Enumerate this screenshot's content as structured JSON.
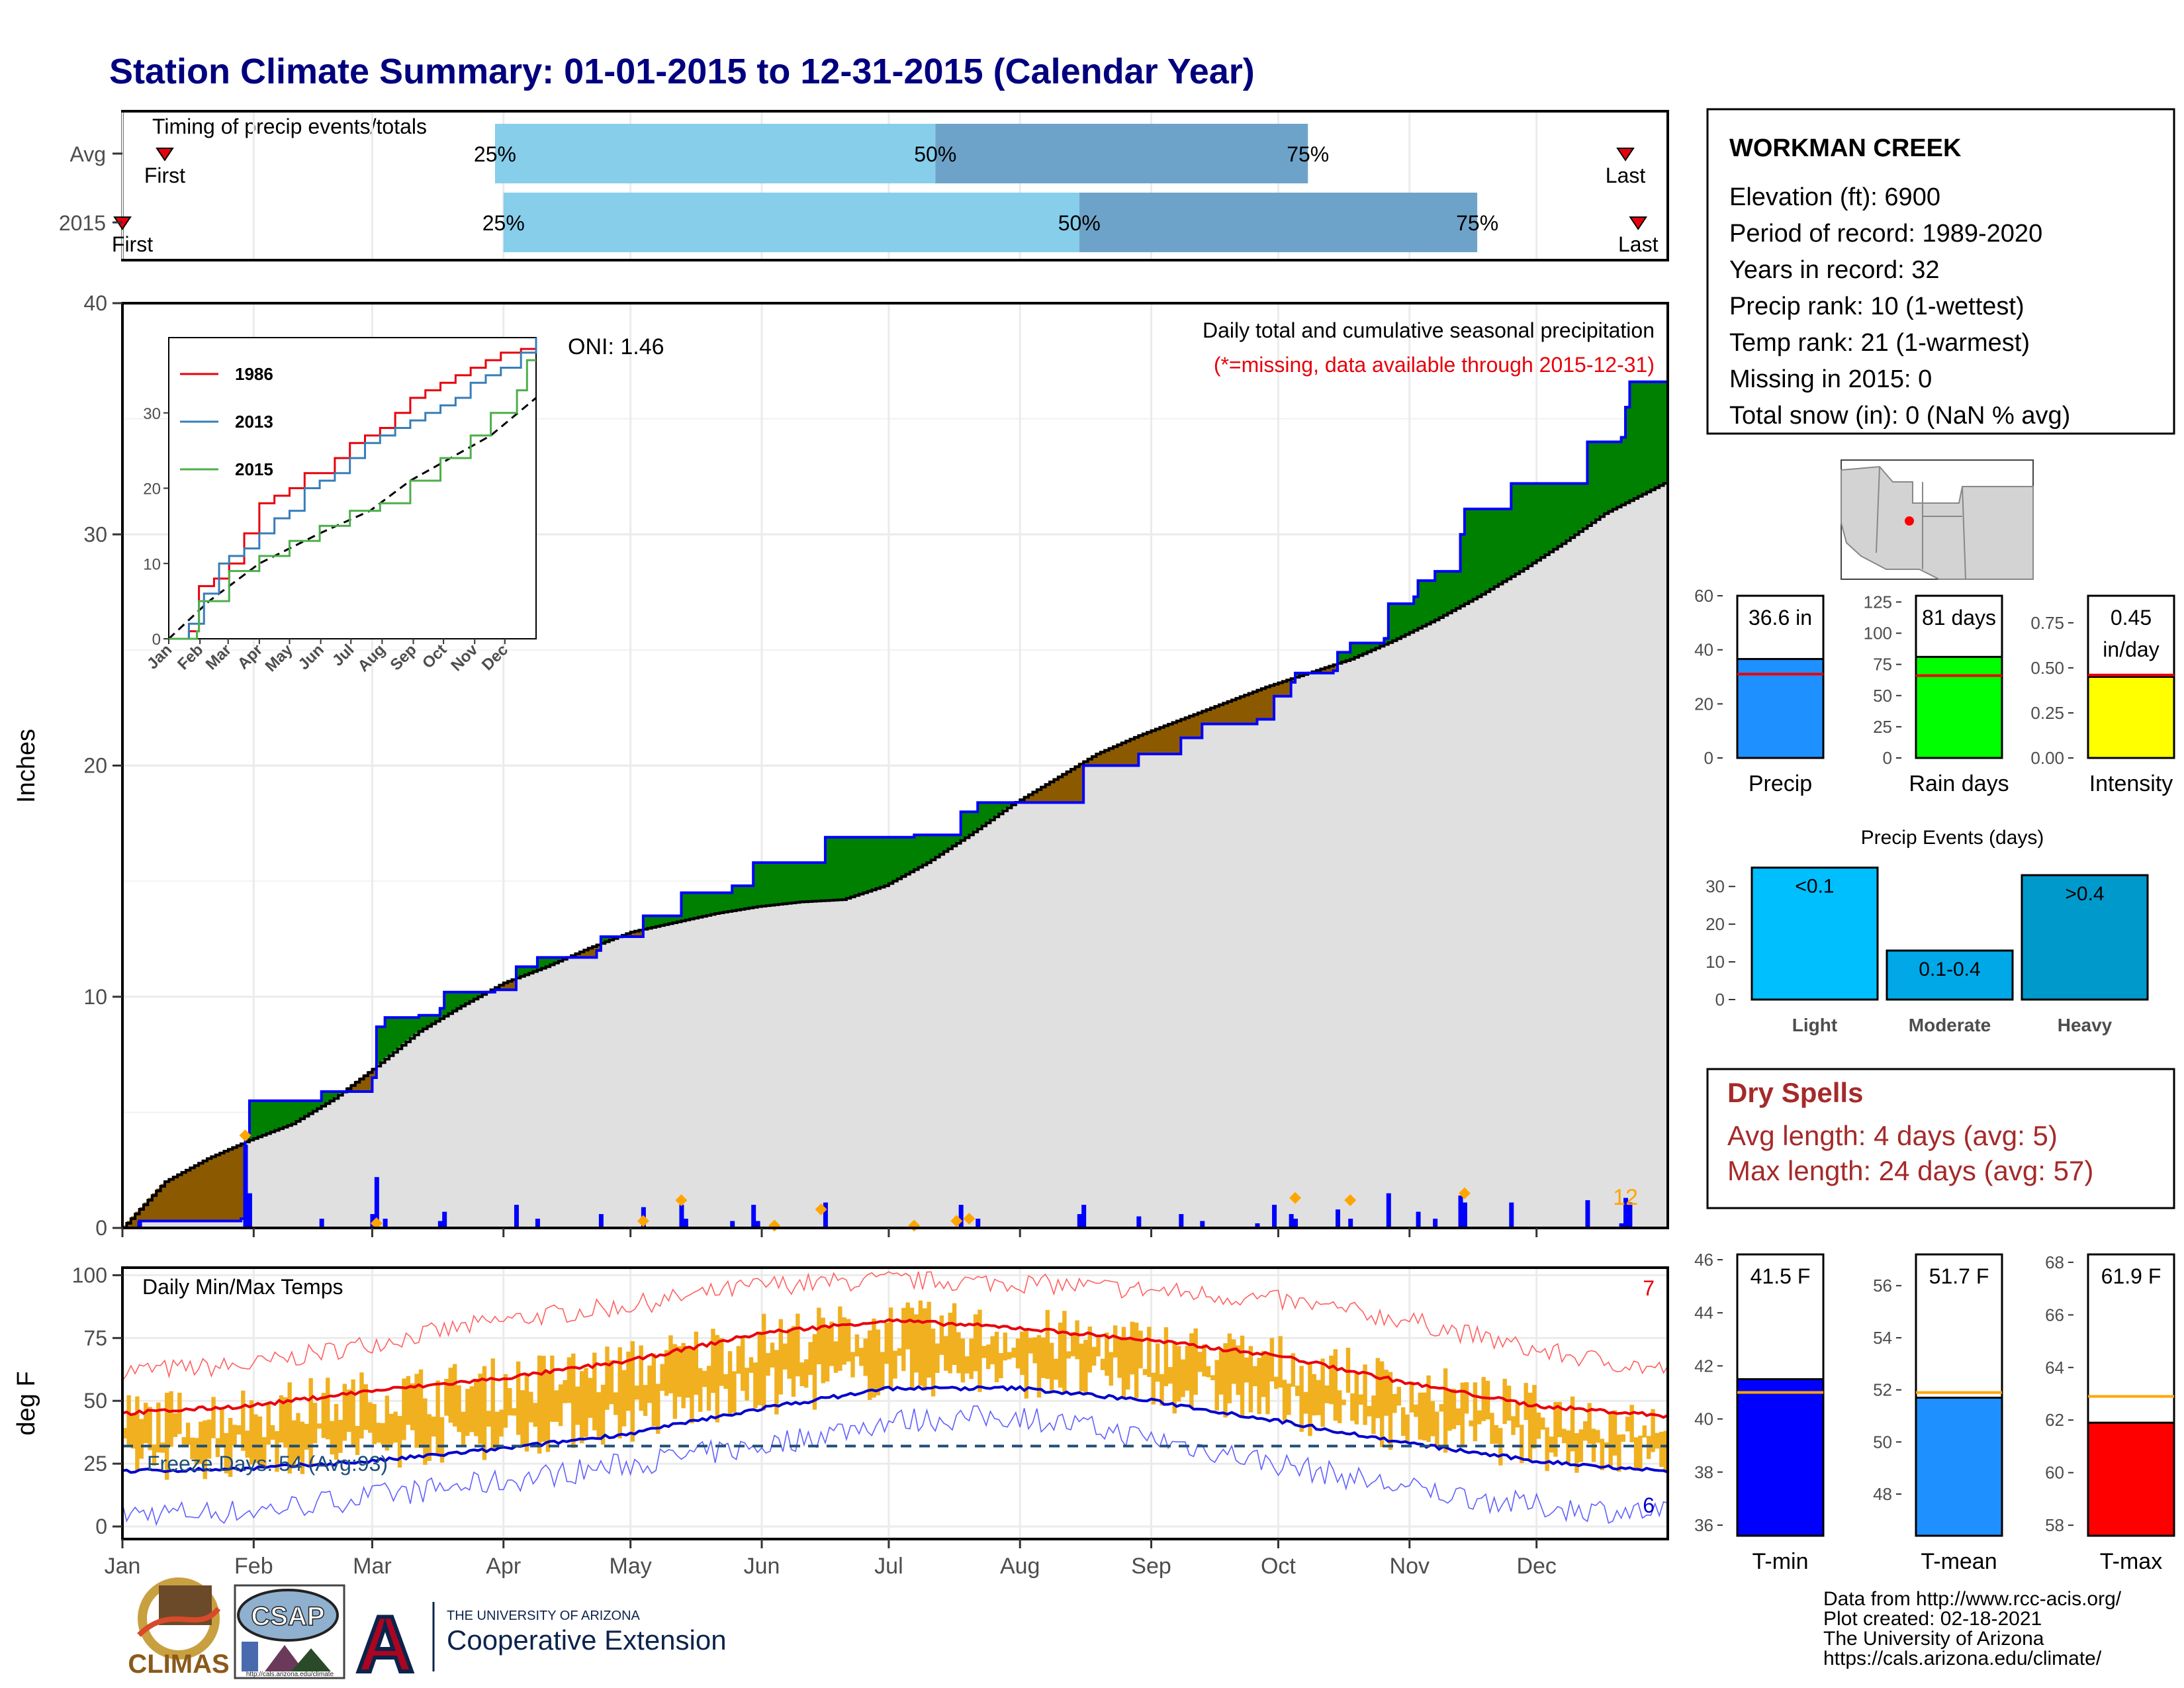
{
  "header": {
    "title": "Station Climate Summary: 01-01-2015 to 12-31-2015 (Calendar Year)"
  },
  "colors": {
    "dark_blue": "#00007f",
    "green": "#008000",
    "brown": "#8b5a00",
    "grey_fill": "#e0e0e0",
    "light_blue": "#87ceeb",
    "mid_blue": "#6ea3c9",
    "orange": "#ffa500",
    "gold": "#f0b020",
    "red": "#e8000b",
    "blue": "#0000ff",
    "sky": "#1e90ff",
    "lime": "#00ff00",
    "yellow": "#ffff00",
    "cyan": "#00bfff",
    "cyan2": "#0099cc",
    "darkred": "#a52a2a"
  },
  "timing": {
    "title": "Timing of precip events/totals",
    "rows": [
      {
        "label": "Avg",
        "first": "First",
        "last": "Last",
        "q25": "25%",
        "q50": "50%",
        "q75": "75%",
        "d_first": 10,
        "d25": 88,
        "d50": 192,
        "d75": 280,
        "d_last": 355
      },
      {
        "label": "2015",
        "first": "First",
        "last": "Last",
        "q25": "25%",
        "q50": "50%",
        "q75": "75%",
        "d_first": 0,
        "d25": 90,
        "d50": 226,
        "d75": 320,
        "d_last": 358
      }
    ]
  },
  "months": [
    "Jan",
    "Feb",
    "Mar",
    "Apr",
    "May",
    "Jun",
    "Jul",
    "Aug",
    "Sep",
    "Oct",
    "Nov",
    "Dec"
  ],
  "precip": {
    "ylabel": "Inches",
    "title": "Daily total and cumulative seasonal precipitation",
    "missing_note": "(*=missing, data available through 2015-12-31)",
    "oni": "ONI: 1.46",
    "count_label": "12",
    "ylim": [
      0,
      40
    ],
    "yticks": [
      0,
      10,
      20,
      30,
      40
    ],
    "avg_cum": [
      [
        0,
        0
      ],
      [
        10,
        2.0
      ],
      [
        20,
        3.0
      ],
      [
        30,
        3.8
      ],
      [
        40,
        4.5
      ],
      [
        50,
        5.6
      ],
      [
        60,
        7.0
      ],
      [
        70,
        8.5
      ],
      [
        80,
        9.6
      ],
      [
        90,
        10.6
      ],
      [
        100,
        11.3
      ],
      [
        110,
        12.1
      ],
      [
        120,
        12.8
      ],
      [
        130,
        13.2
      ],
      [
        140,
        13.6
      ],
      [
        150,
        13.9
      ],
      [
        160,
        14.1
      ],
      [
        170,
        14.2
      ],
      [
        180,
        14.8
      ],
      [
        190,
        15.8
      ],
      [
        200,
        17.0
      ],
      [
        210,
        18.3
      ],
      [
        220,
        19.4
      ],
      [
        230,
        20.5
      ],
      [
        240,
        21.3
      ],
      [
        250,
        22.0
      ],
      [
        260,
        22.7
      ],
      [
        270,
        23.4
      ],
      [
        280,
        24.0
      ],
      [
        290,
        24.6
      ],
      [
        300,
        25.4
      ],
      [
        310,
        26.3
      ],
      [
        320,
        27.3
      ],
      [
        330,
        28.4
      ],
      [
        340,
        29.6
      ],
      [
        350,
        30.9
      ],
      [
        365,
        32.3
      ]
    ],
    "obs_cum": [
      [
        0,
        0
      ],
      [
        4,
        0.3
      ],
      [
        28,
        0.4
      ],
      [
        29,
        4.0
      ],
      [
        30,
        5.5
      ],
      [
        37,
        5.5
      ],
      [
        47,
        5.9
      ],
      [
        58,
        5.9
      ],
      [
        59,
        6.5
      ],
      [
        60,
        8.7
      ],
      [
        62,
        9.1
      ],
      [
        70,
        9.2
      ],
      [
        75,
        9.5
      ],
      [
        76,
        10.2
      ],
      [
        88,
        10.3
      ],
      [
        93,
        11.3
      ],
      [
        98,
        11.7
      ],
      [
        112,
        12.0
      ],
      [
        113,
        12.6
      ],
      [
        114,
        12.6
      ],
      [
        123,
        13.5
      ],
      [
        125,
        13.5
      ],
      [
        132,
        14.5
      ],
      [
        144,
        14.8
      ],
      [
        148,
        14.8
      ],
      [
        149,
        15.8
      ],
      [
        165,
        15.8
      ],
      [
        166,
        16.9
      ],
      [
        185,
        16.9
      ],
      [
        187,
        17.0
      ],
      [
        197,
        17.0
      ],
      [
        198,
        18.0
      ],
      [
        201,
        18.0
      ],
      [
        202,
        18.4
      ],
      [
        226,
        18.4
      ],
      [
        227,
        20.0
      ],
      [
        240,
        20.5
      ],
      [
        250,
        21.2
      ],
      [
        255,
        21.8
      ],
      [
        268,
        22.0
      ],
      [
        272,
        23.0
      ],
      [
        276,
        23.6
      ],
      [
        277,
        24.0
      ],
      [
        286,
        24.1
      ],
      [
        287,
        24.9
      ],
      [
        290,
        25.3
      ],
      [
        298,
        25.5
      ],
      [
        299,
        27.0
      ],
      [
        305,
        27.3
      ],
      [
        306,
        28.0
      ],
      [
        310,
        28.4
      ],
      [
        311,
        28.4
      ],
      [
        316,
        30.0
      ],
      [
        317,
        31.1
      ],
      [
        327,
        31.1
      ],
      [
        328,
        32.2
      ],
      [
        345,
        32.2
      ],
      [
        346,
        34.0
      ],
      [
        354,
        34.2
      ],
      [
        355,
        35.5
      ],
      [
        356,
        36.6
      ],
      [
        365,
        36.6
      ]
    ],
    "daily": [
      [
        4,
        0.3
      ],
      [
        29,
        3.6
      ],
      [
        30,
        1.5
      ],
      [
        47,
        0.4
      ],
      [
        59,
        0.6
      ],
      [
        60,
        2.2
      ],
      [
        62,
        0.4
      ],
      [
        75,
        0.3
      ],
      [
        76,
        0.7
      ],
      [
        93,
        1.0
      ],
      [
        98,
        0.4
      ],
      [
        113,
        0.6
      ],
      [
        123,
        0.9
      ],
      [
        132,
        1.0
      ],
      [
        133,
        0.4
      ],
      [
        144,
        0.3
      ],
      [
        149,
        1.0
      ],
      [
        150,
        0.3
      ],
      [
        166,
        1.1
      ],
      [
        187,
        0.1
      ],
      [
        198,
        1.0
      ],
      [
        202,
        0.4
      ],
      [
        226,
        0.6
      ],
      [
        227,
        1.0
      ],
      [
        240,
        0.5
      ],
      [
        250,
        0.6
      ],
      [
        255,
        0.3
      ],
      [
        268,
        0.2
      ],
      [
        272,
        1.0
      ],
      [
        276,
        0.6
      ],
      [
        277,
        0.4
      ],
      [
        287,
        0.8
      ],
      [
        290,
        0.4
      ],
      [
        299,
        1.5
      ],
      [
        306,
        0.7
      ],
      [
        310,
        0.4
      ],
      [
        316,
        1.4
      ],
      [
        317,
        1.1
      ],
      [
        328,
        1.1
      ],
      [
        346,
        1.2
      ],
      [
        354,
        0.2
      ],
      [
        355,
        1.3
      ],
      [
        356,
        1.1
      ]
    ],
    "record_marks": [
      [
        29,
        4.0
      ],
      [
        60,
        0.2
      ],
      [
        123,
        0.3
      ],
      [
        132,
        1.2
      ],
      [
        154,
        0.1
      ],
      [
        165,
        0.8
      ],
      [
        187,
        0.1
      ],
      [
        197,
        0.3
      ],
      [
        200,
        0.4
      ],
      [
        277,
        1.3
      ],
      [
        290,
        1.2
      ],
      [
        317,
        1.5
      ]
    ],
    "inset": {
      "series": [
        {
          "name": "1986",
          "color": "#e8000b",
          "values": [
            [
              0,
              0
            ],
            [
              20,
              1
            ],
            [
              30,
              7
            ],
            [
              45,
              8
            ],
            [
              60,
              10
            ],
            [
              75,
              14
            ],
            [
              90,
              18
            ],
            [
              105,
              19
            ],
            [
              120,
              20
            ],
            [
              135,
              22
            ],
            [
              150,
              22
            ],
            [
              165,
              24
            ],
            [
              180,
              26
            ],
            [
              195,
              27
            ],
            [
              210,
              28
            ],
            [
              225,
              30
            ],
            [
              240,
              32
            ],
            [
              255,
              33
            ],
            [
              270,
              34
            ],
            [
              285,
              35
            ],
            [
              300,
              36
            ],
            [
              315,
              37
            ],
            [
              330,
              38
            ],
            [
              350,
              38.5
            ],
            [
              365,
              39
            ]
          ]
        },
        {
          "name": "2013",
          "color": "#377eb8",
          "values": [
            [
              0,
              0
            ],
            [
              20,
              2
            ],
            [
              35,
              6
            ],
            [
              50,
              10
            ],
            [
              60,
              11
            ],
            [
              75,
              12
            ],
            [
              90,
              14
            ],
            [
              105,
              16
            ],
            [
              120,
              17
            ],
            [
              135,
              20
            ],
            [
              150,
              21
            ],
            [
              165,
              22
            ],
            [
              180,
              24
            ],
            [
              195,
              26
            ],
            [
              210,
              27
            ],
            [
              225,
              28
            ],
            [
              240,
              29
            ],
            [
              255,
              30
            ],
            [
              270,
              31
            ],
            [
              285,
              32
            ],
            [
              300,
              34
            ],
            [
              315,
              35
            ],
            [
              330,
              36
            ],
            [
              350,
              38
            ],
            [
              365,
              40
            ]
          ]
        },
        {
          "name": "2015",
          "color": "#4daf4a",
          "values": [
            [
              0,
              0
            ],
            [
              28,
              1
            ],
            [
              30,
              5
            ],
            [
              60,
              9
            ],
            [
              90,
              11
            ],
            [
              120,
              13
            ],
            [
              150,
              15
            ],
            [
              180,
              17
            ],
            [
              210,
              18
            ],
            [
              240,
              21
            ],
            [
              270,
              24
            ],
            [
              300,
              27
            ],
            [
              320,
              30
            ],
            [
              346,
              33
            ],
            [
              356,
              37
            ],
            [
              365,
              37
            ]
          ]
        }
      ],
      "avg": [
        [
          0,
          0
        ],
        [
          40,
          5
        ],
        [
          90,
          10
        ],
        [
          150,
          14
        ],
        [
          200,
          17
        ],
        [
          240,
          21
        ],
        [
          280,
          24
        ],
        [
          320,
          27
        ],
        [
          365,
          32
        ]
      ],
      "ylim": [
        0,
        40
      ],
      "yticks": [
        0,
        10,
        20,
        30
      ]
    }
  },
  "temps": {
    "ylabel": "deg F",
    "title": "Daily Min/Max Temps",
    "freeze_text": "Freeze Days: 54 (Avg:93)",
    "max_count": "7",
    "min_count": "6",
    "ylim": [
      -5,
      103
    ],
    "yticks": [
      0,
      25,
      50,
      75,
      100
    ],
    "freeze_line": 32,
    "normal_max": [
      [
        0,
        45
      ],
      [
        30,
        48
      ],
      [
        59,
        54
      ],
      [
        90,
        59
      ],
      [
        120,
        66
      ],
      [
        151,
        77
      ],
      [
        181,
        82
      ],
      [
        212,
        79
      ],
      [
        243,
        74
      ],
      [
        273,
        68
      ],
      [
        304,
        57
      ],
      [
        334,
        48
      ],
      [
        365,
        44
      ]
    ],
    "normal_min": [
      [
        0,
        22
      ],
      [
        30,
        23
      ],
      [
        59,
        26
      ],
      [
        90,
        31
      ],
      [
        120,
        37
      ],
      [
        151,
        47
      ],
      [
        181,
        55
      ],
      [
        212,
        55
      ],
      [
        243,
        50
      ],
      [
        273,
        42
      ],
      [
        304,
        33
      ],
      [
        334,
        26
      ],
      [
        365,
        22
      ]
    ],
    "record_max": [
      [
        0,
        62
      ],
      [
        30,
        64
      ],
      [
        59,
        73
      ],
      [
        90,
        82
      ],
      [
        120,
        88
      ],
      [
        151,
        96
      ],
      [
        181,
        98
      ],
      [
        212,
        97
      ],
      [
        243,
        94
      ],
      [
        273,
        90
      ],
      [
        304,
        82
      ],
      [
        334,
        70
      ],
      [
        365,
        62
      ]
    ],
    "record_min": [
      [
        0,
        5
      ],
      [
        30,
        6
      ],
      [
        59,
        12
      ],
      [
        90,
        18
      ],
      [
        120,
        25
      ],
      [
        151,
        32
      ],
      [
        181,
        42
      ],
      [
        212,
        44
      ],
      [
        243,
        35
      ],
      [
        273,
        25
      ],
      [
        304,
        15
      ],
      [
        334,
        8
      ],
      [
        365,
        5
      ]
    ]
  },
  "station": {
    "name": "WORKMAN CREEK",
    "lines": [
      "Elevation (ft): 6900",
      "Period of record: 1989-2020",
      "Years in record: 32",
      "Precip rank: 10 (1-wettest)",
      "Temp rank: 21 (1-warmest)",
      "Missing in 2015: 0",
      "Total snow (in): 0 (NaN % avg)"
    ]
  },
  "precip_bars": [
    {
      "label": "Precip",
      "value_text": "36.6 in",
      "value": 36.6,
      "avg": 31,
      "ymax": 60,
      "yticks": [
        0,
        20,
        40,
        60
      ],
      "color": "#1e90ff"
    },
    {
      "label": "Rain days",
      "value_text": "81 days",
      "value": 81,
      "avg": 66,
      "ymax": 130,
      "yticks": [
        0,
        25,
        50,
        75,
        100,
        125
      ],
      "color": "#00ff00"
    },
    {
      "label": "Intensity",
      "value_text": "0.45",
      "value_text2": "in/day",
      "value": 0.45,
      "avg": 0.46,
      "ymax": 0.9,
      "yticks": [
        0.0,
        0.25,
        0.5,
        0.75
      ],
      "color": "#ffff00"
    }
  ],
  "events": {
    "title": "Precip Events (days)",
    "categories": [
      "Light",
      "Moderate",
      "Heavy"
    ],
    "bin_labels": [
      "<0.1",
      "0.1-0.4",
      ">0.4"
    ],
    "values": [
      35,
      13,
      33
    ],
    "colors": [
      "#00bfff",
      "#00a8e8",
      "#0099cc"
    ],
    "ylim": [
      0,
      36
    ],
    "yticks": [
      0,
      10,
      20,
      30
    ]
  },
  "dry": {
    "title": "Dry Spells",
    "avg_line": "Avg length: 4 days (avg: 5)",
    "max_line": "Max length: 24 days (avg: 57)"
  },
  "temp_bars": [
    {
      "label": "T-min",
      "value_text": "41.5 F",
      "value": 41.5,
      "avg": 41.0,
      "ymin": 35.6,
      "ymax": 46.2,
      "yticks": [
        36,
        38,
        40,
        42,
        44,
        46
      ],
      "color": "#0000ff"
    },
    {
      "label": "T-mean",
      "value_text": "51.7 F",
      "value": 51.7,
      "avg": 51.9,
      "ymin": 46.4,
      "ymax": 57.2,
      "yticks": [
        48,
        50,
        52,
        54,
        56
      ],
      "color": "#1e90ff"
    },
    {
      "label": "T-max",
      "value_text": "61.9 F",
      "value": 61.9,
      "avg": 62.9,
      "ymin": 57.6,
      "ymax": 68.3,
      "yticks": [
        58,
        60,
        62,
        64,
        66,
        68
      ],
      "color": "#ff0000"
    }
  ],
  "footer": {
    "lines": [
      "Data from http://www.rcc-acis.org/",
      "Plot created: 02-18-2021",
      "The University of Arizona",
      "https://cals.arizona.edu/climate/"
    ],
    "logo_climas": "CLIMAS",
    "logo_csap": "CSAP",
    "logo_csap_url": "http://cals.arizona.edu/climate",
    "logo_a": "A",
    "coop_small": "THE UNIVERSITY OF ARIZONA",
    "coop_big": "Cooperative Extension"
  }
}
